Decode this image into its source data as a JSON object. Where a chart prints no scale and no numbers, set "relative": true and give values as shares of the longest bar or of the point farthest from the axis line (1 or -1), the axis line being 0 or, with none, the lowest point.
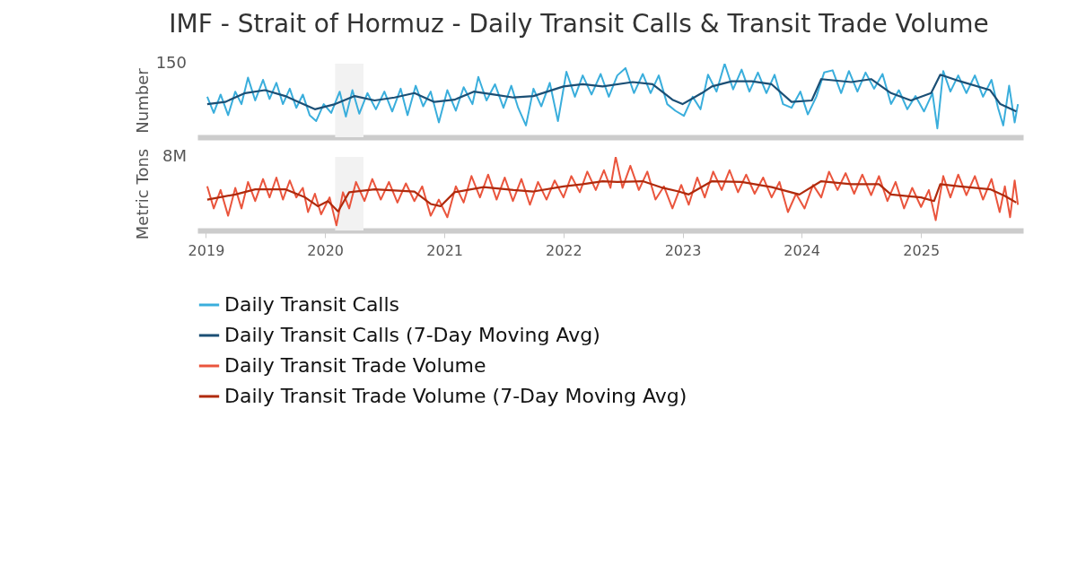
{
  "chart_data": [
    {
      "type": "line",
      "title": "IMF - Strait of Hormuz - Daily Transit Calls & Transit Trade Volume",
      "ylabel": "Number",
      "relative": true,
      "xlim": [
        "2018-12-06",
        "2025-11-10"
      ],
      "tick_labels": false,
      "legend": "bottom",
      "annotations": [
        "150"
      ],
      "bands": [
        {
          "axis": "x",
          "from": "2020-02-01",
          "to": "2020-04-28",
          "color": "#f2f2f2"
        }
      ],
      "series": [
        {
          "name": "Daily Transit Calls",
          "color": "#3aaedc",
          "x": [
            "2019-01-05",
            "2019-01-25",
            "2019-02-15",
            "2019-03-10",
            "2019-04-01",
            "2019-04-20",
            "2019-05-10",
            "2019-06-01",
            "2019-06-25",
            "2019-07-15",
            "2019-08-05",
            "2019-08-25",
            "2019-09-15",
            "2019-10-05",
            "2019-10-25",
            "2019-11-15",
            "2019-12-05",
            "2019-12-28",
            "2020-01-20",
            "2020-02-15",
            "2020-03-05",
            "2020-03-25",
            "2020-04-15",
            "2020-05-10",
            "2020-06-05",
            "2020-07-01",
            "2020-07-25",
            "2020-08-20",
            "2020-09-10",
            "2020-10-05",
            "2020-10-28",
            "2020-11-20",
            "2020-12-15",
            "2021-01-10",
            "2021-02-05",
            "2021-03-01",
            "2021-03-28",
            "2021-04-15",
            "2021-05-10",
            "2021-06-05",
            "2021-07-01",
            "2021-07-25",
            "2021-08-15",
            "2021-09-08",
            "2021-10-01",
            "2021-10-25",
            "2021-11-20",
            "2021-12-15",
            "2022-01-10",
            "2022-02-05",
            "2022-03-01",
            "2022-03-28",
            "2022-04-25",
            "2022-05-20",
            "2022-06-15",
            "2022-07-10",
            "2022-08-05",
            "2022-09-01",
            "2022-09-25",
            "2022-10-20",
            "2022-11-15",
            "2022-12-10",
            "2023-01-05",
            "2023-02-01",
            "2023-02-25",
            "2023-03-20",
            "2023-04-15",
            "2023-05-10",
            "2023-06-05",
            "2023-07-01",
            "2023-07-25",
            "2023-08-20",
            "2023-09-15",
            "2023-10-10",
            "2023-11-05",
            "2023-12-01",
            "2023-12-28",
            "2024-01-20",
            "2024-02-15",
            "2024-03-10",
            "2024-04-05",
            "2024-05-01",
            "2024-05-25",
            "2024-06-20",
            "2024-07-15",
            "2024-08-10",
            "2024-09-05",
            "2024-10-01",
            "2024-10-25",
            "2024-11-20",
            "2024-12-15",
            "2025-01-10",
            "2025-02-05",
            "2025-02-20",
            "2025-03-10",
            "2025-04-01",
            "2025-04-25",
            "2025-05-20",
            "2025-06-15",
            "2025-07-10",
            "2025-08-05",
            "2025-08-25",
            "2025-09-10",
            "2025-09-28",
            "2025-10-15",
            "2025-10-25"
          ],
          "values": [
            0.55,
            0.33,
            0.58,
            0.3,
            0.62,
            0.45,
            0.81,
            0.5,
            0.78,
            0.52,
            0.74,
            0.45,
            0.66,
            0.4,
            0.58,
            0.3,
            0.22,
            0.45,
            0.33,
            0.62,
            0.28,
            0.64,
            0.32,
            0.6,
            0.38,
            0.62,
            0.35,
            0.66,
            0.3,
            0.7,
            0.42,
            0.62,
            0.2,
            0.64,
            0.36,
            0.68,
            0.45,
            0.82,
            0.5,
            0.72,
            0.4,
            0.7,
            0.4,
            0.16,
            0.66,
            0.42,
            0.74,
            0.22,
            0.89,
            0.55,
            0.84,
            0.58,
            0.86,
            0.55,
            0.84,
            0.94,
            0.6,
            0.86,
            0.6,
            0.84,
            0.45,
            0.36,
            0.29,
            0.55,
            0.38,
            0.85,
            0.62,
            1.0,
            0.65,
            0.92,
            0.62,
            0.88,
            0.6,
            0.85,
            0.45,
            0.4,
            0.62,
            0.31,
            0.55,
            0.88,
            0.91,
            0.6,
            0.9,
            0.62,
            0.88,
            0.66,
            0.86,
            0.45,
            0.64,
            0.38,
            0.56,
            0.35,
            0.6,
            0.12,
            0.9,
            0.62,
            0.84,
            0.6,
            0.84,
            0.55,
            0.78,
            0.4,
            0.16,
            0.7,
            0.2,
            0.45
          ]
        },
        {
          "name": "Daily Transit Calls (7-Day Moving Avg)",
          "color": "#1b4f75",
          "x": [
            "2019-01-05",
            "2019-03-01",
            "2019-05-01",
            "2019-07-01",
            "2019-09-01",
            "2019-10-01",
            "2019-12-01",
            "2020-02-01",
            "2020-04-01",
            "2020-06-01",
            "2020-08-01",
            "2020-10-01",
            "2020-12-01",
            "2021-02-01",
            "2021-04-01",
            "2021-06-01",
            "2021-08-01",
            "2021-10-01",
            "2022-01-01",
            "2022-03-01",
            "2022-05-01",
            "2022-08-01",
            "2022-10-01",
            "2022-12-01",
            "2023-01-01",
            "2023-03-01",
            "2023-04-01",
            "2023-06-01",
            "2023-08-01",
            "2023-10-01",
            "2023-12-01",
            "2024-02-01",
            "2024-03-01",
            "2024-06-01",
            "2024-08-01",
            "2024-10-01",
            "2024-12-01",
            "2025-02-01",
            "2025-03-01",
            "2025-05-01",
            "2025-08-01",
            "2025-09-01",
            "2025-10-20"
          ],
          "values": [
            0.45,
            0.48,
            0.6,
            0.64,
            0.56,
            0.5,
            0.38,
            0.45,
            0.56,
            0.5,
            0.54,
            0.6,
            0.48,
            0.51,
            0.62,
            0.58,
            0.54,
            0.56,
            0.69,
            0.72,
            0.69,
            0.75,
            0.72,
            0.51,
            0.45,
            0.6,
            0.69,
            0.76,
            0.76,
            0.72,
            0.48,
            0.5,
            0.79,
            0.75,
            0.79,
            0.6,
            0.5,
            0.6,
            0.85,
            0.76,
            0.64,
            0.45,
            0.35
          ]
        }
      ]
    },
    {
      "type": "line",
      "ylabel": "Metric Tons",
      "relative": true,
      "xlim": [
        "2018-12-06",
        "2025-11-10"
      ],
      "xticks": [
        "2019",
        "2020",
        "2021",
        "2022",
        "2023",
        "2024",
        "2025"
      ],
      "tick_labels": "x",
      "legend": "bottom",
      "annotations": [
        "8M"
      ],
      "bands": [
        {
          "axis": "x",
          "from": "2020-02-01",
          "to": "2020-04-28",
          "color": "#f2f2f2"
        }
      ],
      "series": [
        {
          "name": "Daily Transit Trade Volume",
          "color": "#ea553d",
          "x": [
            "2019-01-05",
            "2019-01-25",
            "2019-02-15",
            "2019-03-10",
            "2019-04-01",
            "2019-04-20",
            "2019-05-10",
            "2019-06-01",
            "2019-06-25",
            "2019-07-15",
            "2019-08-05",
            "2019-08-25",
            "2019-09-15",
            "2019-10-05",
            "2019-10-25",
            "2019-11-10",
            "2019-12-01",
            "2019-12-20",
            "2020-01-15",
            "2020-02-05",
            "2020-02-25",
            "2020-03-15",
            "2020-04-05",
            "2020-05-01",
            "2020-05-25",
            "2020-06-20",
            "2020-07-15",
            "2020-08-10",
            "2020-09-05",
            "2020-10-01",
            "2020-10-25",
            "2020-11-20",
            "2020-12-15",
            "2021-01-10",
            "2021-02-05",
            "2021-03-01",
            "2021-03-25",
            "2021-04-20",
            "2021-05-15",
            "2021-06-10",
            "2021-07-05",
            "2021-07-30",
            "2021-08-25",
            "2021-09-20",
            "2021-10-15",
            "2021-11-10",
            "2021-12-05",
            "2022-01-01",
            "2022-01-25",
            "2022-02-20",
            "2022-03-15",
            "2022-04-10",
            "2022-05-05",
            "2022-05-25",
            "2022-06-10",
            "2022-07-01",
            "2022-07-25",
            "2022-08-20",
            "2022-09-15",
            "2022-10-10",
            "2022-11-05",
            "2022-12-01",
            "2022-12-28",
            "2023-01-20",
            "2023-02-15",
            "2023-03-10",
            "2023-04-05",
            "2023-05-01",
            "2023-05-25",
            "2023-06-20",
            "2023-07-15",
            "2023-08-10",
            "2023-09-05",
            "2023-10-01",
            "2023-10-25",
            "2023-11-20",
            "2023-12-15",
            "2024-01-10",
            "2024-02-05",
            "2024-03-01",
            "2024-03-25",
            "2024-04-20",
            "2024-05-15",
            "2024-06-10",
            "2024-07-05",
            "2024-08-01",
            "2024-08-25",
            "2024-09-20",
            "2024-10-15",
            "2024-11-10",
            "2024-12-05",
            "2025-01-01",
            "2025-01-25",
            "2025-02-15",
            "2025-03-10",
            "2025-04-01",
            "2025-04-25",
            "2025-05-20",
            "2025-06-15",
            "2025-07-10",
            "2025-08-05",
            "2025-08-30",
            "2025-09-15",
            "2025-10-01",
            "2025-10-15",
            "2025-10-25"
          ],
          "values": [
            0.6,
            0.3,
            0.55,
            0.2,
            0.58,
            0.3,
            0.66,
            0.4,
            0.7,
            0.45,
            0.72,
            0.42,
            0.68,
            0.45,
            0.58,
            0.25,
            0.5,
            0.22,
            0.45,
            0.07,
            0.52,
            0.3,
            0.66,
            0.4,
            0.7,
            0.42,
            0.66,
            0.38,
            0.64,
            0.4,
            0.6,
            0.2,
            0.42,
            0.18,
            0.6,
            0.38,
            0.74,
            0.45,
            0.76,
            0.42,
            0.72,
            0.4,
            0.7,
            0.35,
            0.66,
            0.42,
            0.68,
            0.45,
            0.74,
            0.52,
            0.8,
            0.55,
            0.82,
            0.58,
            1.0,
            0.58,
            0.88,
            0.55,
            0.8,
            0.42,
            0.6,
            0.3,
            0.62,
            0.35,
            0.72,
            0.45,
            0.8,
            0.55,
            0.82,
            0.52,
            0.76,
            0.5,
            0.72,
            0.45,
            0.66,
            0.25,
            0.5,
            0.3,
            0.62,
            0.45,
            0.8,
            0.55,
            0.78,
            0.5,
            0.76,
            0.48,
            0.74,
            0.4,
            0.66,
            0.3,
            0.58,
            0.32,
            0.55,
            0.14,
            0.74,
            0.45,
            0.76,
            0.48,
            0.74,
            0.42,
            0.7,
            0.25,
            0.6,
            0.18,
            0.68,
            0.35
          ]
        },
        {
          "name": "Daily Transit Trade Volume (7-Day Moving Avg)",
          "color": "#b02a0c",
          "x": [
            "2019-01-05",
            "2019-04-01",
            "2019-06-01",
            "2019-09-01",
            "2019-11-01",
            "2019-12-10",
            "2020-01-10",
            "2020-02-10",
            "2020-03-15",
            "2020-06-01",
            "2020-10-01",
            "2020-11-20",
            "2020-12-20",
            "2021-02-01",
            "2021-05-01",
            "2021-08-01",
            "2021-10-01",
            "2022-01-01",
            "2022-03-01",
            "2022-05-01",
            "2022-06-15",
            "2022-09-01",
            "2022-11-01",
            "2022-12-20",
            "2023-01-20",
            "2023-04-01",
            "2023-07-01",
            "2023-10-01",
            "2023-12-25",
            "2024-03-01",
            "2024-06-01",
            "2024-08-25",
            "2024-10-01",
            "2025-01-01",
            "2025-02-10",
            "2025-03-01",
            "2025-05-01",
            "2025-08-01",
            "2025-09-15",
            "2025-10-20"
          ],
          "values": [
            0.42,
            0.49,
            0.56,
            0.56,
            0.45,
            0.33,
            0.4,
            0.26,
            0.52,
            0.56,
            0.53,
            0.36,
            0.33,
            0.52,
            0.59,
            0.55,
            0.53,
            0.6,
            0.63,
            0.67,
            0.66,
            0.67,
            0.58,
            0.53,
            0.49,
            0.67,
            0.66,
            0.59,
            0.49,
            0.67,
            0.63,
            0.63,
            0.49,
            0.45,
            0.4,
            0.63,
            0.6,
            0.56,
            0.47,
            0.38
          ]
        }
      ]
    }
  ]
}
